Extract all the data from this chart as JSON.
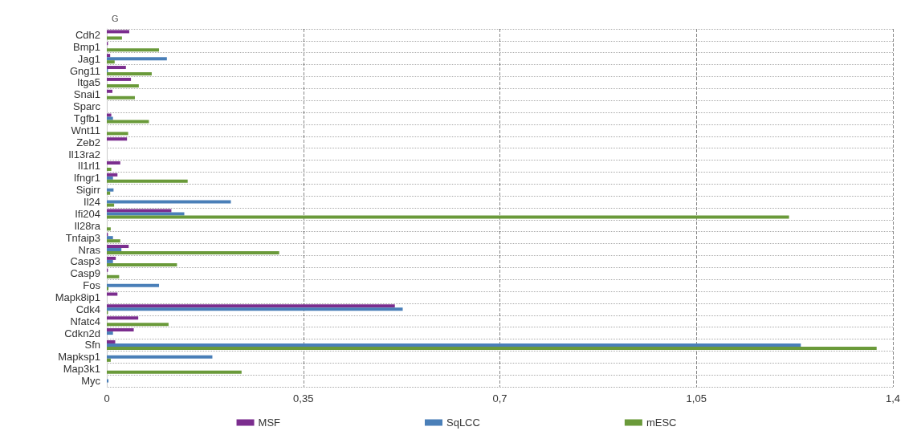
{
  "chart_data": {
    "type": "bar",
    "orientation": "horizontal",
    "title": "G",
    "categories": [
      "Cdh2",
      "Bmp1",
      "Jag1",
      "Gng11",
      "Itga5",
      "Snai1",
      "Sparc",
      "Tgfb1",
      "Wnt11",
      "Zeb2",
      "Il13ra2",
      "Il1rl1",
      "Ifngr1",
      "Sigirr",
      "Il24",
      "Ifi204",
      "Il28ra",
      "Tnfaip3",
      "Nras",
      "Casp3",
      "Casp9",
      "Fos",
      "Mapk8ip1",
      "Cdk4",
      "Nfatc4",
      "Cdkn2d",
      "Sfn",
      "Mapksp1",
      "Map3k1",
      "Myc"
    ],
    "series": [
      {
        "name": "MSF",
        "color": "#7b2d8e",
        "values": [
          0.04,
          0.002,
          0.006,
          0.034,
          0.043,
          0.01,
          null,
          0.008,
          null,
          0.036,
          null,
          0.024,
          0.019,
          null,
          null,
          0.115,
          null,
          0.002,
          0.039,
          0.016,
          0.002,
          null,
          0.019,
          0.513,
          0.056,
          0.048,
          0.015,
          null,
          null,
          null
        ]
      },
      {
        "name": "SqLCC",
        "color": "#4a7fb8",
        "values": [
          null,
          null,
          0.107,
          0.002,
          null,
          null,
          null,
          0.011,
          null,
          null,
          null,
          null,
          0.011,
          0.012,
          0.221,
          0.138,
          null,
          0.011,
          0.026,
          0.011,
          null,
          0.093,
          null,
          0.527,
          null,
          0.011,
          1.236,
          0.188,
          null,
          0.003
        ]
      },
      {
        "name": "mESC",
        "color": "#6a9a3a",
        "values": [
          0.027,
          0.093,
          0.014,
          0.08,
          0.057,
          0.05,
          null,
          0.075,
          0.038,
          null,
          null,
          0.008,
          0.144,
          0.006,
          0.013,
          1.215,
          0.007,
          0.024,
          0.307,
          0.125,
          0.022,
          0.003,
          null,
          0.002,
          0.11,
          null,
          1.371,
          0.007,
          0.24,
          null
        ]
      }
    ],
    "xlim": [
      0,
      1.4
    ],
    "xticks": [
      0,
      {
        "value": 0.35,
        "label": "0,35"
      },
      {
        "value": 0.7,
        "label": "0,7"
      },
      {
        "value": 1.05,
        "label": "1,05"
      },
      {
        "value": 1.4,
        "label": "1,4"
      }
    ],
    "grid": true,
    "legend": "bottom"
  }
}
